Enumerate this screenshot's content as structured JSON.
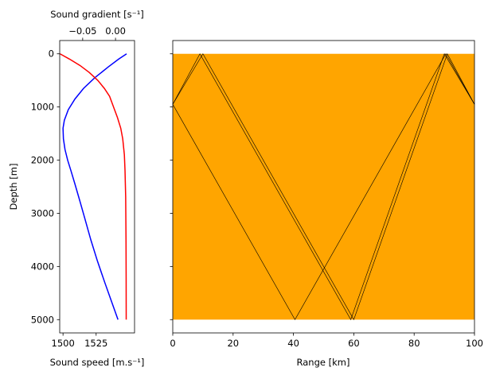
{
  "chart_data": [
    {
      "type": "line",
      "panel": "profile",
      "xlabel": "Sound speed [m.s⁻¹]",
      "ylabel": "Depth [m]",
      "x2label": "Sound gradient [s⁻¹]",
      "xlim": [
        1497.5,
        1554
      ],
      "x2lim": [
        -0.085,
        0.029
      ],
      "ylim": [
        5250,
        -250
      ],
      "xticks": [
        1500,
        1525
      ],
      "x2ticks": [
        -0.05,
        0.0
      ],
      "x2ticklabels": [
        "−0.05",
        "0.00"
      ],
      "yticks": [
        0,
        1000,
        2000,
        3000,
        4000,
        5000
      ],
      "series": [
        {
          "axis": "x",
          "color": "#0000ff",
          "points": [
            [
              1548.0,
              0
            ],
            [
              1542.0,
              100
            ],
            [
              1534.0,
              250
            ],
            [
              1524.0,
              450
            ],
            [
              1515.5,
              650
            ],
            [
              1509.0,
              850
            ],
            [
              1504.0,
              1050
            ],
            [
              1501.0,
              1250
            ],
            [
              1500.0,
              1400
            ],
            [
              1500.3,
              1600
            ],
            [
              1501.5,
              1800
            ],
            [
              1503.5,
              2000
            ],
            [
              1506.0,
              2200
            ],
            [
              1509.0,
              2450
            ],
            [
              1512.5,
              2750
            ],
            [
              1516.5,
              3100
            ],
            [
              1521.0,
              3500
            ],
            [
              1526.0,
              3900
            ],
            [
              1531.5,
              4300
            ],
            [
              1536.5,
              4650
            ],
            [
              1541.5,
              5000
            ]
          ]
        },
        {
          "axis": "x2",
          "color": "#ff0000",
          "points": [
            [
              -0.0845,
              0
            ],
            [
              -0.07,
              100
            ],
            [
              -0.054,
              220
            ],
            [
              -0.04,
              350
            ],
            [
              -0.027,
              500
            ],
            [
              -0.017,
              650
            ],
            [
              -0.009,
              800
            ],
            [
              -0.003,
              1000
            ],
            [
              0.003,
              1200
            ],
            [
              0.008,
              1400
            ],
            [
              0.011,
              1600
            ],
            [
              0.0135,
              1900
            ],
            [
              0.0145,
              2200
            ],
            [
              0.0155,
              2700
            ],
            [
              0.016,
              3500
            ],
            [
              0.0162,
              4200
            ],
            [
              0.0163,
              5000
            ]
          ]
        }
      ]
    },
    {
      "type": "ray-trace",
      "panel": "rays",
      "xlabel": "Range [km]",
      "xlim": [
        0,
        100
      ],
      "ylim": [
        5250,
        -250
      ],
      "xticks": [
        0,
        20,
        40,
        60,
        80,
        100
      ],
      "yticks": [
        0,
        1000,
        2000,
        3000,
        4000,
        5000
      ],
      "fill_color": "#ffa500",
      "fill_depth": [
        0,
        5000
      ],
      "ray_color": "#000000",
      "rays": [
        [
          [
            0,
            950
          ],
          [
            9.0,
            0
          ],
          [
            59.0,
            5000
          ],
          [
            90.0,
            0
          ],
          [
            100,
            950
          ]
        ],
        [
          [
            0,
            950
          ],
          [
            10.0,
            0
          ],
          [
            60.0,
            5000
          ],
          [
            91.0,
            0
          ],
          [
            100,
            950
          ]
        ],
        [
          [
            0,
            950
          ],
          [
            40.5,
            5000
          ],
          [
            90.5,
            0
          ],
          [
            100,
            950
          ]
        ]
      ]
    }
  ]
}
